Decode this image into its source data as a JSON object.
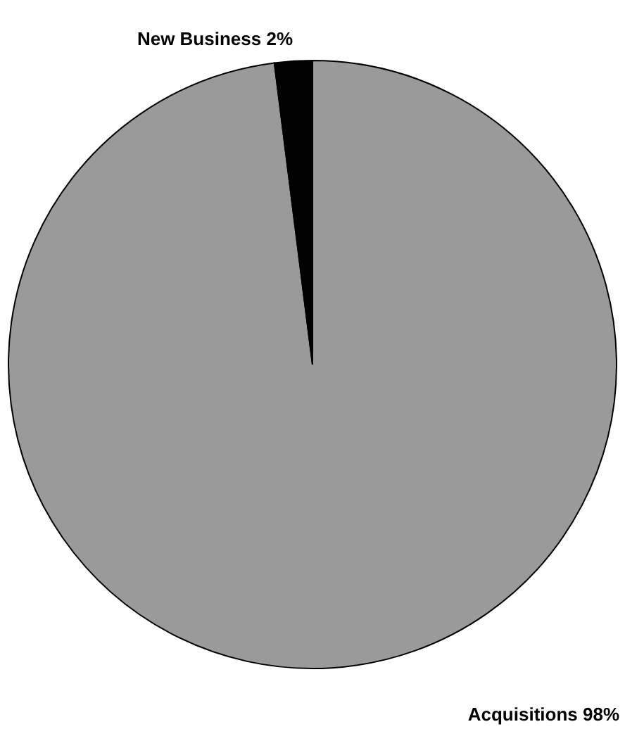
{
  "chart_data": {
    "type": "pie",
    "categories": [
      "Acquisitions",
      "New Business"
    ],
    "values": [
      98,
      2
    ],
    "value_labels": [
      "98%",
      "2%"
    ],
    "colors": [
      "#9a9a9a",
      "#000000"
    ]
  }
}
